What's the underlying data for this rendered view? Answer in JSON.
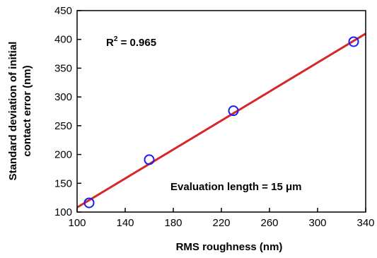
{
  "chart_data": {
    "type": "scatter",
    "xlabel": "RMS roughness (nm)",
    "ylabel_lines": [
      "Standard deviation of initial",
      "contact error (nm)"
    ],
    "xlim": [
      100,
      340
    ],
    "ylim": [
      100,
      450
    ],
    "xticks": [
      100,
      140,
      180,
      220,
      260,
      300,
      340
    ],
    "yticks": [
      100,
      150,
      200,
      250,
      300,
      350,
      400,
      450
    ],
    "grid": false,
    "series": [
      {
        "type": "scatter",
        "marker": "open-circle",
        "color": "#1a1aff",
        "x": [
          110,
          160,
          230,
          330
        ],
        "y": [
          116,
          191,
          276,
          396
        ]
      },
      {
        "type": "line",
        "role": "linear-fit",
        "color": "#d62828",
        "x": [
          100,
          340
        ],
        "y": [
          108,
          410
        ]
      }
    ],
    "annotations": {
      "r2_prefix": "R",
      "r2_exp": "2",
      "r2_value": " = 0.965",
      "eval_length": "Evaluation length = 15 μm"
    }
  }
}
